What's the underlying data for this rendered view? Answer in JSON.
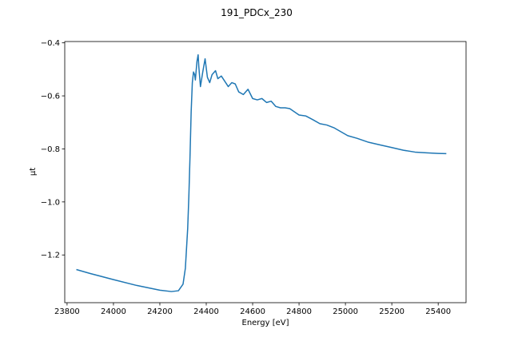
{
  "chart_data": {
    "type": "line",
    "title": "191_PDCx_230",
    "xlabel": "Energy [eV]",
    "ylabel": "μt",
    "xlim": [
      23790,
      25520
    ],
    "ylim": [
      -1.38,
      -0.395
    ],
    "xticks": [
      23800,
      24000,
      24200,
      24400,
      24600,
      24800,
      25000,
      25200,
      25400
    ],
    "yticks": [
      -1.2,
      -1.0,
      -0.8,
      -0.6,
      -0.4
    ],
    "ytick_labels": [
      "−1.2",
      "−1.0",
      "−0.8",
      "−0.6",
      "−0.4"
    ],
    "grid": false,
    "series": [
      {
        "color": "#1f77b4",
        "x": [
          23840,
          23900,
          24000,
          24100,
          24200,
          24250,
          24280,
          24300,
          24310,
          24320,
          24325,
          24330,
          24335,
          24340,
          24345,
          24350,
          24353,
          24356,
          24360,
          24365,
          24368,
          24375,
          24385,
          24395,
          24405,
          24415,
          24425,
          24440,
          24450,
          24465,
          24480,
          24495,
          24510,
          24525,
          24540,
          24560,
          24580,
          24600,
          24620,
          24640,
          24660,
          24680,
          24700,
          24720,
          24740,
          24760,
          24780,
          24800,
          24830,
          24860,
          24890,
          24920,
          24950,
          24980,
          25010,
          25050,
          25100,
          25150,
          25200,
          25250,
          25300,
          25350,
          25400,
          25435
        ],
        "y": [
          -1.255,
          -1.27,
          -1.293,
          -1.315,
          -1.333,
          -1.338,
          -1.335,
          -1.31,
          -1.25,
          -1.1,
          -0.98,
          -0.83,
          -0.66,
          -0.55,
          -0.51,
          -0.52,
          -0.54,
          -0.51,
          -0.47,
          -0.445,
          -0.49,
          -0.565,
          -0.51,
          -0.46,
          -0.53,
          -0.55,
          -0.52,
          -0.505,
          -0.535,
          -0.525,
          -0.545,
          -0.565,
          -0.55,
          -0.555,
          -0.585,
          -0.595,
          -0.575,
          -0.61,
          -0.615,
          -0.61,
          -0.625,
          -0.62,
          -0.64,
          -0.645,
          -0.645,
          -0.648,
          -0.66,
          -0.672,
          -0.676,
          -0.69,
          -0.705,
          -0.71,
          -0.72,
          -0.735,
          -0.75,
          -0.76,
          -0.775,
          -0.785,
          -0.795,
          -0.805,
          -0.812,
          -0.815,
          -0.817,
          -0.818
        ]
      }
    ]
  }
}
